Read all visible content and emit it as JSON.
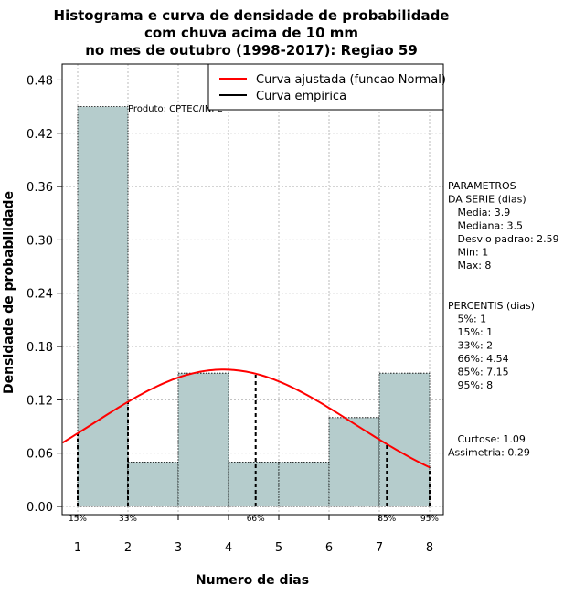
{
  "chart_data": {
    "type": "bar",
    "title": [
      "Histograma e curva de densidade de probabilidade",
      "com chuva acima de 10 mm",
      "no mes de outubro (1998-2017): Regiao 59"
    ],
    "xlabel": "Numero de dias",
    "ylabel": "Densidade de probabilidade",
    "xlim": [
      0.7,
      8.3
    ],
    "ylim": [
      0,
      0.5
    ],
    "x_ticks": [
      "1",
      "2",
      "3",
      "4",
      "5",
      "6",
      "7",
      "8"
    ],
    "y_ticks": [
      "0.00",
      "0.06",
      "0.12",
      "0.18",
      "0.24",
      "0.30",
      "0.36",
      "0.42",
      "0.48"
    ],
    "bins": [
      {
        "from": 1,
        "to": 2,
        "value": 0.45
      },
      {
        "from": 2,
        "to": 3,
        "value": 0.05
      },
      {
        "from": 3,
        "to": 4,
        "value": 0.15
      },
      {
        "from": 4,
        "to": 5,
        "value": 0.05
      },
      {
        "from": 5,
        "to": 6,
        "value": 0.05
      },
      {
        "from": 6,
        "to": 7,
        "value": 0.1
      },
      {
        "from": 7,
        "to": 8,
        "value": 0.15
      }
    ],
    "normal_curve": {
      "mean": 3.9,
      "sd": 2.59,
      "x_from": 0.7,
      "x_to": 8.0
    },
    "percentile_lines": [
      {
        "label": "15%",
        "x": 1
      },
      {
        "label": "33%",
        "x": 2
      },
      {
        "label": "66%",
        "x": 4.54
      },
      {
        "label": "85%",
        "x": 7.15
      },
      {
        "label": "95%",
        "x": 8
      }
    ],
    "legend": [
      {
        "label": "Curva ajustada (funcao Normal)",
        "color": "#ff0000"
      },
      {
        "label": "Curva empirica",
        "color": "#000000"
      }
    ],
    "annotation": "Produto: CPTEC/INPE",
    "colors": {
      "bar_fill": "#b5cccc",
      "curve": "#ff0000",
      "grid": "#bbbbbb"
    }
  },
  "side_panel": {
    "parametros": [
      "PARAMETROS",
      "DA SERIE (dias)",
      "   Media: 3.9",
      "   Mediana: 3.5",
      "   Desvio padrao: 2.59",
      "   Min: 1",
      "   Max: 8"
    ],
    "percentis": [
      "PERCENTIS (dias)",
      "   5%: 1",
      "   15%: 1",
      "   33%: 2",
      "   66%: 4.54",
      "   85%: 7.15",
      "   95%: 8"
    ],
    "stats": [
      "   Curtose: 1.09",
      "Assimetria: 0.29"
    ]
  }
}
